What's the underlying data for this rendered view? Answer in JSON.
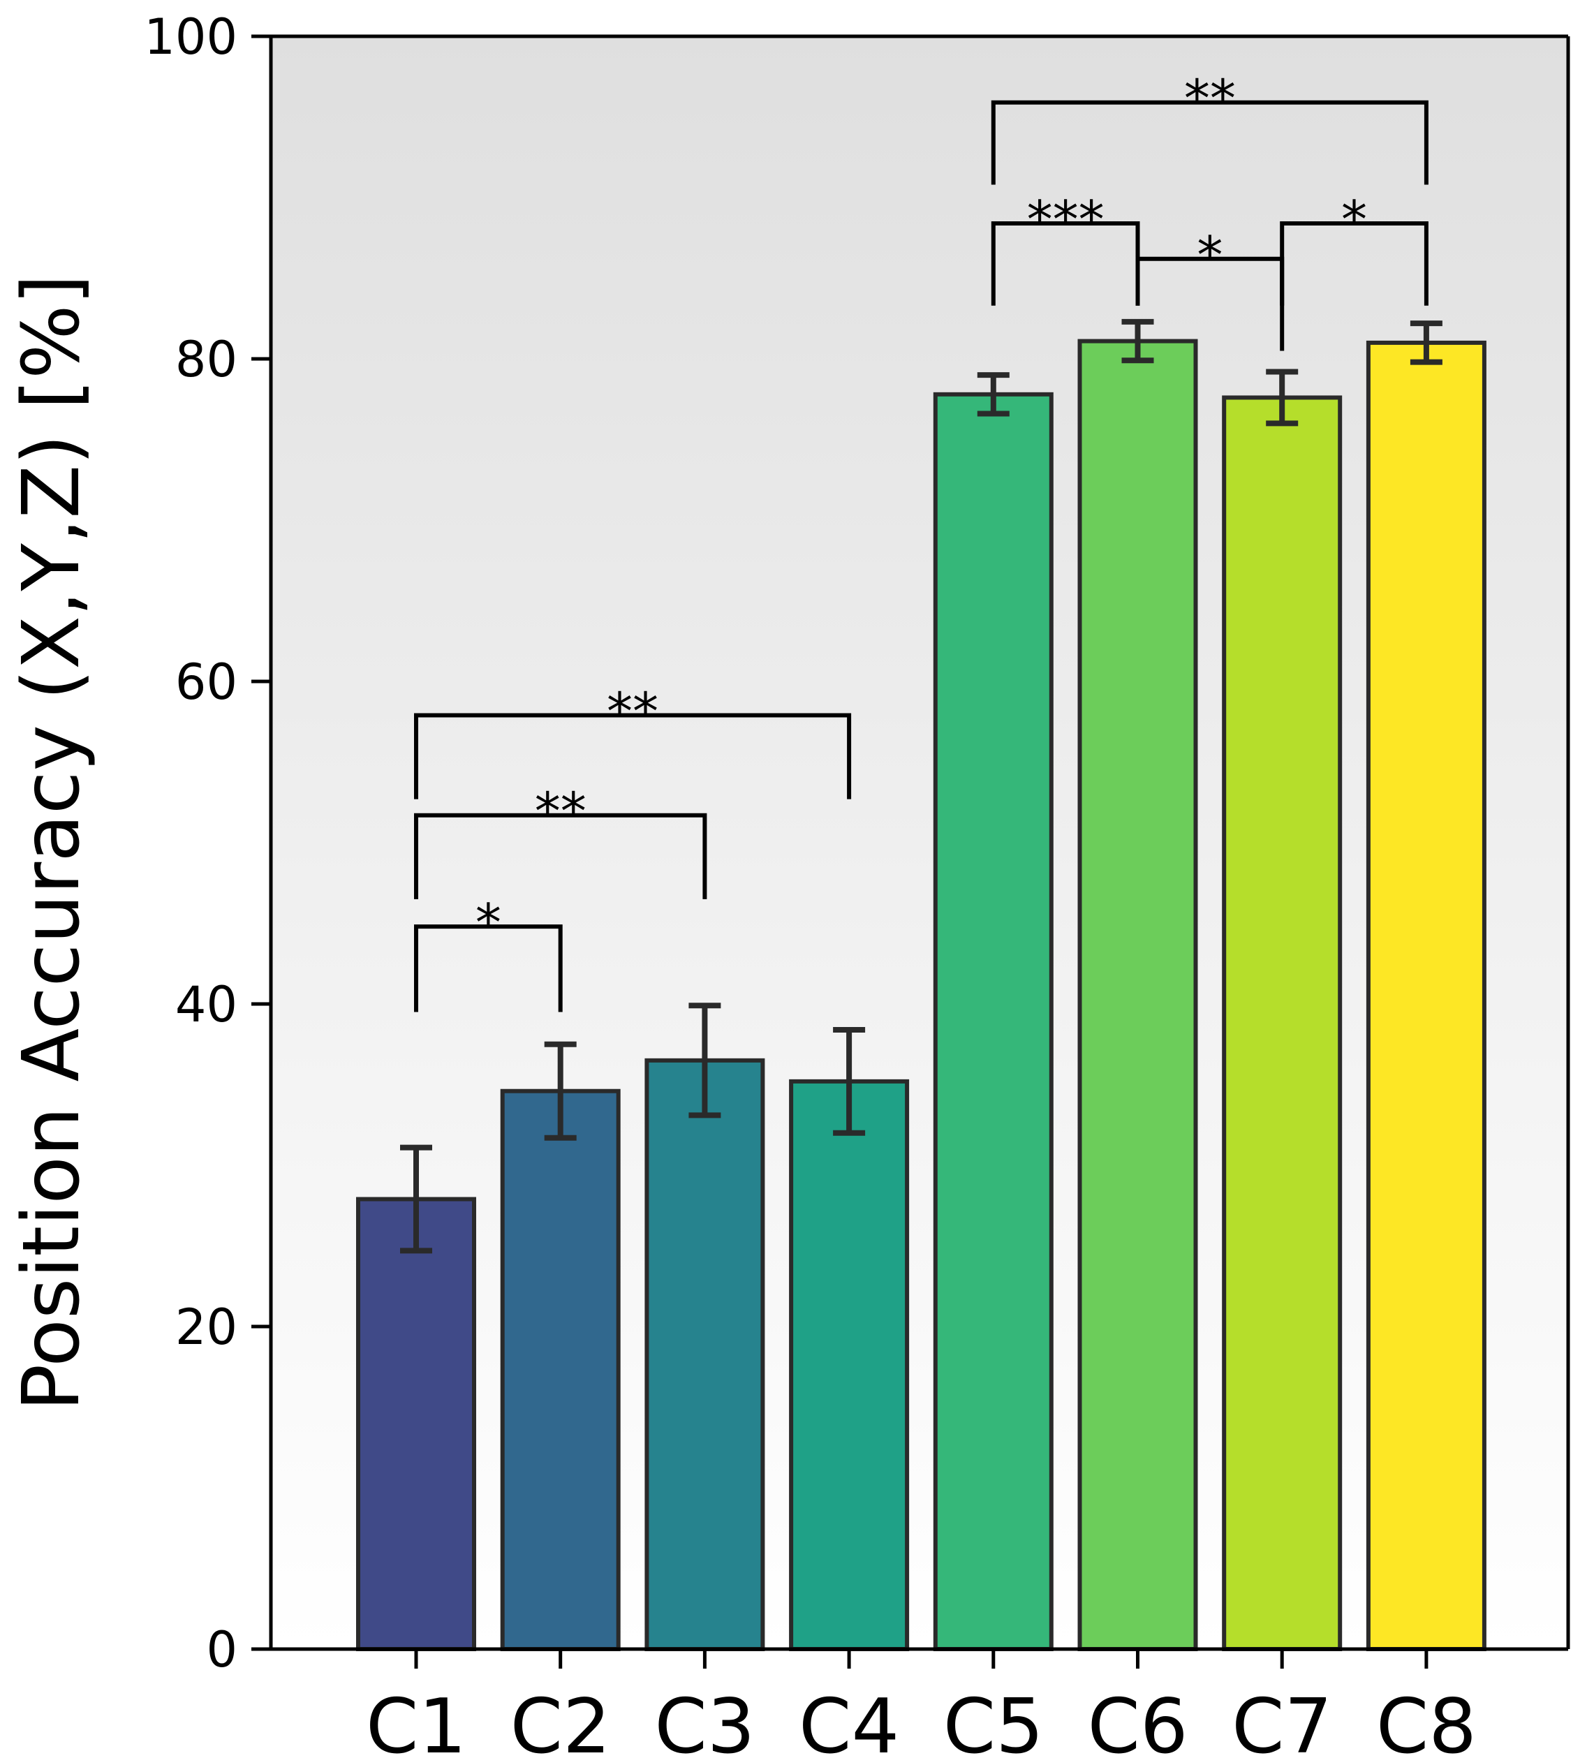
{
  "chart_data": {
    "type": "bar",
    "title": "",
    "xlabel": "",
    "ylabel": "Position Accuracy (X,Y,Z) [%]",
    "ylim": [
      0,
      100
    ],
    "yticks": [
      0,
      20,
      40,
      60,
      80,
      100
    ],
    "grid": false,
    "background_gradient": {
      "top": "#dfdfdf",
      "bottom": "#ffffff"
    },
    "categories": [
      "C1",
      "C2",
      "C3",
      "C4",
      "C5",
      "C6",
      "C7",
      "C8"
    ],
    "values": [
      27.9,
      34.6,
      36.5,
      35.2,
      77.8,
      81.1,
      77.6,
      81.0
    ],
    "errors": [
      3.2,
      2.9,
      3.4,
      3.2,
      1.2,
      1.2,
      1.6,
      1.2
    ],
    "colors": [
      "#404a88",
      "#31688e",
      "#26838e",
      "#1fa187",
      "#35b779",
      "#6ccd5a",
      "#b5de2b",
      "#fde725"
    ],
    "edge_color": "#2a2a2a",
    "significance": [
      {
        "from": "C1",
        "to": "C2",
        "label": "*",
        "y": 44.8,
        "tip_from": 39.5,
        "tip_to": 39.5
      },
      {
        "from": "C1",
        "to": "C3",
        "label": "**",
        "y": 51.7,
        "tip_from": 46.5,
        "tip_to": 46.5
      },
      {
        "from": "C1",
        "to": "C4",
        "label": "**",
        "y": 57.9,
        "tip_from": 52.7,
        "tip_to": 52.7
      },
      {
        "from": "C5",
        "to": "C6",
        "label": "***",
        "y": 88.4,
        "tip_from": 83.3,
        "tip_to": 83.3
      },
      {
        "from": "C6",
        "to": "C7",
        "label": "*",
        "y": 86.2,
        "tip_from": 83.3,
        "tip_to": 80.5
      },
      {
        "from": "C7",
        "to": "C8",
        "label": "*",
        "y": 88.4,
        "tip_from": 83.3,
        "tip_to": 83.3
      },
      {
        "from": "C5",
        "to": "C8",
        "label": "**",
        "y": 95.9,
        "tip_from": 90.8,
        "tip_to": 90.8
      }
    ]
  }
}
